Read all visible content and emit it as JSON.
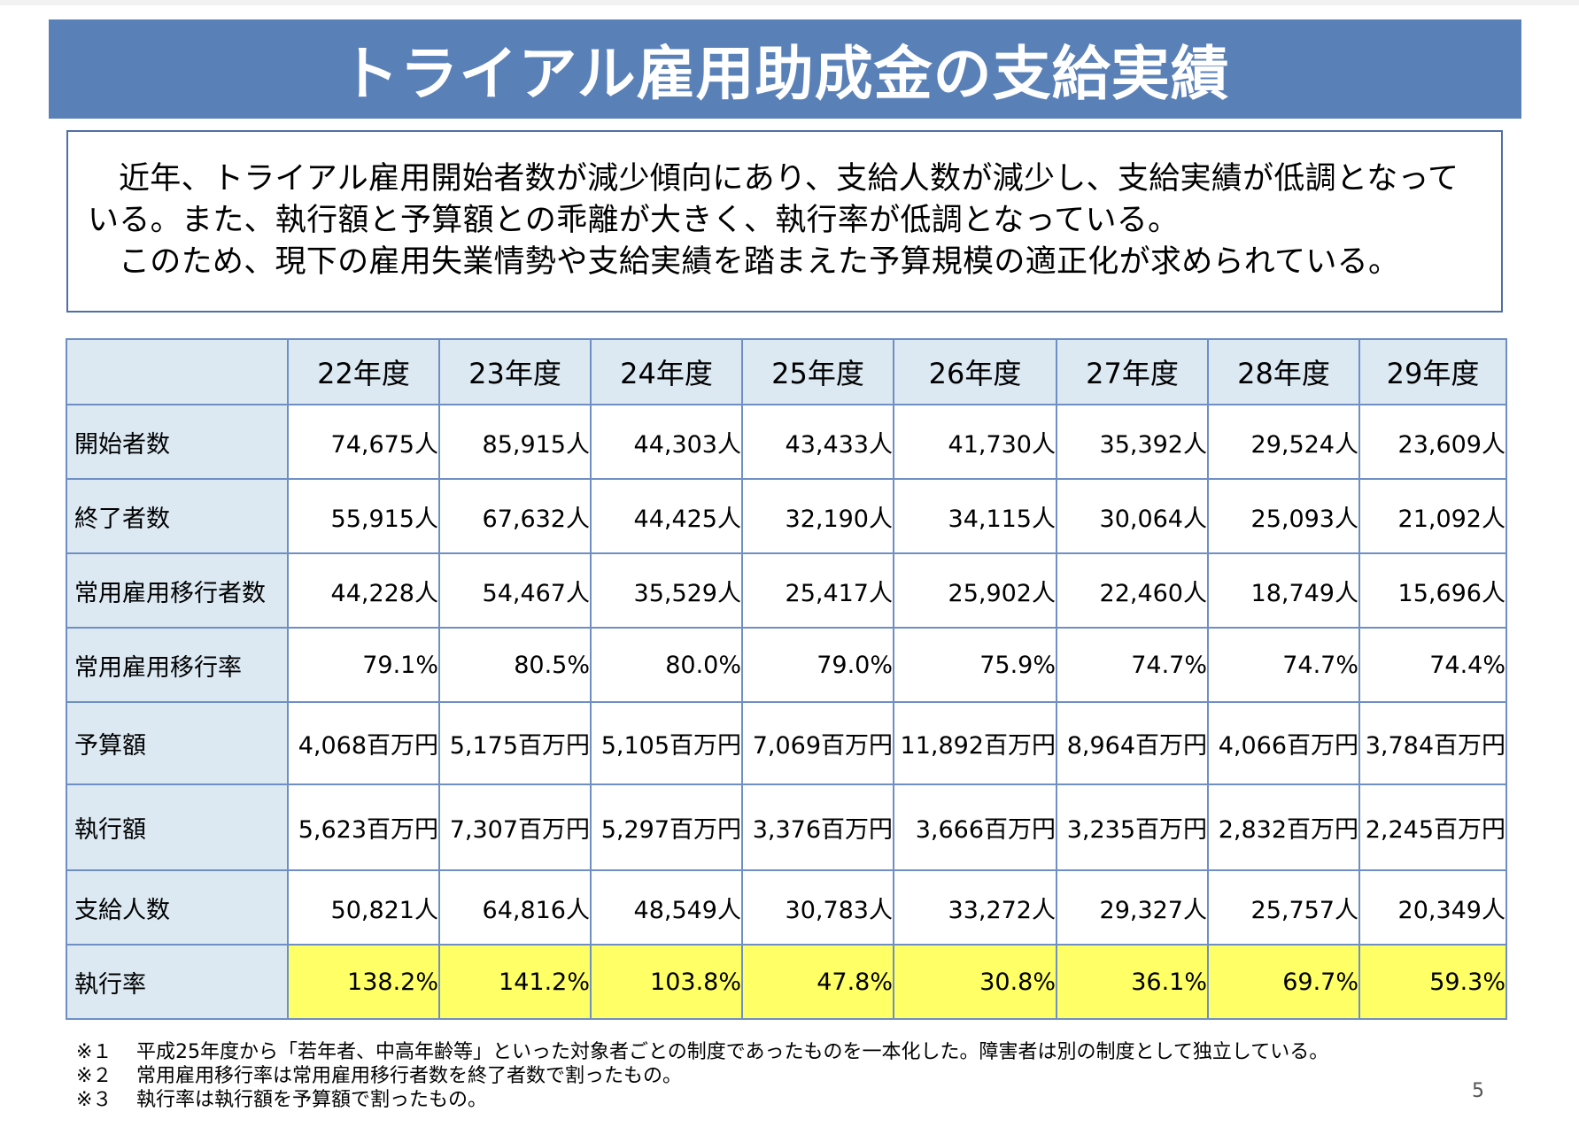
{
  "title": "トライアル雇用助成金の支給実績",
  "intro": {
    "line1": "近年、トライアル雇用開始者数が減少傾向にあり、支給人数が減少し、支給実績が低調となっている。また、執行額と予算額との乖離が大きく、執行率が低調となっている。",
    "line2": "このため、現下の雇用失業情勢や支給実績を踏まえた予算規模の適正化が求められている。"
  },
  "table": {
    "years": [
      "22年度",
      "23年度",
      "24年度",
      "25年度",
      "26年度",
      "27年度",
      "28年度",
      "29年度"
    ],
    "rows": [
      {
        "label": "開始者数",
        "values": [
          "74,675人",
          "85,915人",
          "44,303人",
          "43,433人",
          "41,730人",
          "35,392人",
          "29,524人",
          "23,609人"
        ]
      },
      {
        "label": "終了者数",
        "values": [
          "55,915人",
          "67,632人",
          "44,425人",
          "32,190人",
          "34,115人",
          "30,064人",
          "25,093人",
          "21,092人"
        ]
      },
      {
        "label": "常用雇用移行者数",
        "values": [
          "44,228人",
          "54,467人",
          "35,529人",
          "25,417人",
          "25,902人",
          "22,460人",
          "18,749人",
          "15,696人"
        ]
      },
      {
        "label": "常用雇用移行率",
        "values": [
          "79.1%",
          "80.5%",
          "80.0%",
          "79.0%",
          "75.9%",
          "74.7%",
          "74.7%",
          "74.4%"
        ]
      },
      {
        "label": "予算額",
        "values": [
          "4,068百万円",
          "5,175百万円",
          "5,105百万円",
          "7,069百万円",
          "11,892百万円",
          "8,964百万円",
          "4,066百万円",
          "3,784百万円"
        ]
      },
      {
        "label": "執行額",
        "values": [
          "5,623百万円",
          "7,307百万円",
          "5,297百万円",
          "3,376百万円",
          "3,666百万円",
          "3,235百万円",
          "2,832百万円",
          "2,245百万円"
        ]
      },
      {
        "label": "支給人数",
        "values": [
          "50,821人",
          "64,816人",
          "48,549人",
          "30,783人",
          "33,272人",
          "29,327人",
          "25,757人",
          "20,349人"
        ]
      },
      {
        "label": "執行率",
        "values": [
          "138.2%",
          "141.2%",
          "103.8%",
          "47.8%",
          "30.8%",
          "36.1%",
          "69.7%",
          "59.3%"
        ]
      }
    ]
  },
  "notes": [
    {
      "mark": "※１",
      "text": "平成25年度から「若年者、中高年齢等」といった対象者ごとの制度であったものを一本化した。障害者は別の制度として独立している。"
    },
    {
      "mark": "※２",
      "text": "常用雇用移行率は常用雇用移行者数を終了者数で割ったもの。"
    },
    {
      "mark": "※３",
      "text": "執行率は執行額を予算額で割ったもの。"
    }
  ],
  "page_number": "5",
  "colors": {
    "title_bar": "#5a80b8",
    "header_fill": "#dce9f3",
    "highlight": "#ffff66",
    "border": "#6f8fc4"
  }
}
